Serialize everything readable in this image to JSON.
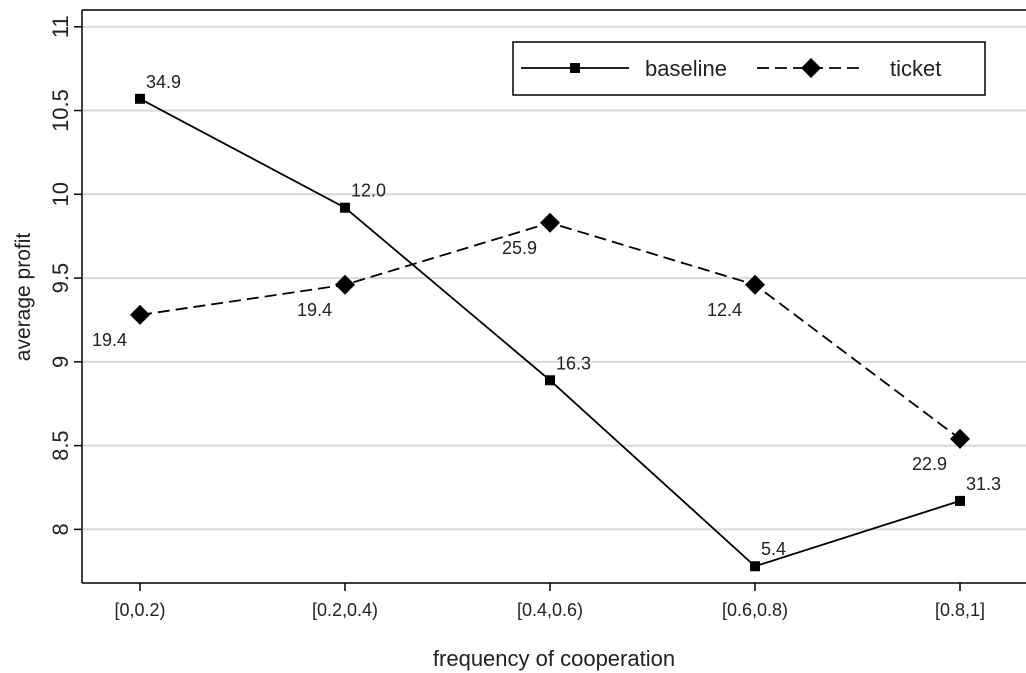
{
  "chart_data": {
    "type": "line",
    "xlabel": "frequency of cooperation",
    "ylabel": "average profit",
    "categories": [
      "[0,0.2)",
      "[0.2,0.4)",
      "[0.4,0.6)",
      "[0.6,0.8)",
      "[0.8,1]"
    ],
    "series": [
      {
        "name": "baseline",
        "color": "#000000",
        "dash": false,
        "marker": "square",
        "values": [
          10.57,
          9.92,
          8.89,
          7.78,
          8.17
        ],
        "annotations": [
          "34.9",
          "12.0",
          "16.3",
          "5.4",
          "31.3"
        ]
      },
      {
        "name": "ticket",
        "color": "#000000",
        "dash": true,
        "marker": "diamond",
        "values": [
          9.28,
          9.46,
          9.83,
          9.46,
          8.54
        ],
        "annotations": [
          "19.4",
          "19.4",
          "25.9",
          "12.4",
          "22.9"
        ]
      }
    ],
    "ylim": [
      7.68,
      11.1
    ],
    "yticks": [
      8,
      8.5,
      9,
      9.5,
      10,
      10.5,
      11
    ],
    "grid": true,
    "legend": "upper right"
  }
}
